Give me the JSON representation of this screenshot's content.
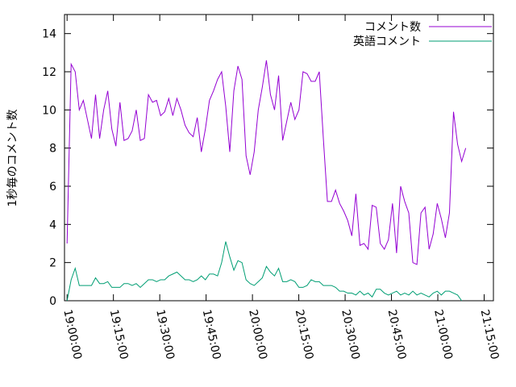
{
  "chart_data": {
    "type": "line",
    "ylabel": "1秒毎のコメント数",
    "x": [
      68400,
      68479,
      68558,
      68637,
      68716,
      68795,
      68874,
      68953,
      69032,
      69111,
      69190,
      69269,
      69348,
      69427,
      69506,
      69585,
      69664,
      69743,
      69822,
      69901,
      69980,
      70059,
      70138,
      70217,
      70296,
      70375,
      70454,
      70533,
      70612,
      70691,
      70770,
      70849,
      70928,
      71007,
      71086,
      71165,
      71244,
      71323,
      71402,
      71481,
      71560,
      71639,
      71718,
      71797,
      71876,
      71955,
      72034,
      72113,
      72192,
      72271,
      72350,
      72429,
      72508,
      72587,
      72666,
      72745,
      72824,
      72903,
      72982,
      73061,
      73140,
      73219,
      73298,
      73377,
      73456,
      73535,
      73614,
      73693,
      73772,
      73851,
      73930,
      74009,
      74088,
      74167,
      74246,
      74325,
      74404,
      74483,
      74562,
      74641,
      74720,
      74799,
      74878,
      74957,
      75036,
      75115,
      75194,
      75273,
      75352,
      75431,
      75510,
      75589,
      75668,
      75747,
      75826,
      75905,
      75984,
      76063,
      76142
    ],
    "series": [
      {
        "name": "コメント数",
        "color": "#9400d3",
        "values": [
          3,
          12.4,
          12,
          10,
          10.5,
          9.5,
          8.5,
          10.8,
          8.5,
          10,
          11,
          9,
          8.1,
          10.4,
          8.4,
          8.5,
          8.9,
          10,
          8.4,
          8.5,
          10.8,
          10.4,
          10.5,
          9.7,
          9.9,
          10.6,
          9.7,
          10.6,
          10,
          9.2,
          8.8,
          8.6,
          9.6,
          7.8,
          9,
          10.5,
          11,
          11.6,
          12,
          10.2,
          7.8,
          11,
          12.3,
          11.6,
          7.6,
          6.6,
          7.8,
          10,
          11.2,
          12.6,
          10.8,
          10,
          11.8,
          8.4,
          9.4,
          10.4,
          9.5,
          10,
          12,
          11.9,
          11.5,
          11.5,
          12,
          8.5,
          5.2,
          5.2,
          5.8,
          5.1,
          4.7,
          4.2,
          3.4,
          5.6,
          2.9,
          3,
          2.7,
          5,
          4.9,
          3,
          2.7,
          3.2,
          5.1,
          2.5,
          6,
          5.2,
          4.6,
          2,
          1.9,
          4.6,
          4.9,
          2.7,
          3.5,
          5.1,
          4.3,
          3.3,
          4.6,
          9.9,
          8.2,
          7.3,
          8
        ]
      },
      {
        "name": "英語コメント",
        "color": "#009e73",
        "values": [
          0,
          1.1,
          1.7,
          0.8,
          0.8,
          0.8,
          0.8,
          1.2,
          0.9,
          0.9,
          1,
          0.7,
          0.7,
          0.7,
          0.9,
          0.9,
          0.8,
          0.9,
          0.7,
          0.9,
          1.1,
          1.1,
          1,
          1.1,
          1.1,
          1.3,
          1.4,
          1.5,
          1.3,
          1.1,
          1.1,
          1,
          1.1,
          1.3,
          1.1,
          1.4,
          1.4,
          1.3,
          2,
          3.1,
          2.3,
          1.6,
          2.1,
          2,
          1.1,
          0.9,
          0.8,
          1,
          1.2,
          1.8,
          1.5,
          1.3,
          1.7,
          1,
          1,
          1.1,
          1,
          0.7,
          0.7,
          0.8,
          1.1,
          1,
          1,
          0.8,
          0.8,
          0.8,
          0.7,
          0.5,
          0.5,
          0.4,
          0.4,
          0.3,
          0.5,
          0.3,
          0.4,
          0.2,
          0.6,
          0.6,
          0.4,
          0.3,
          0.4,
          0.5,
          0.3,
          0.4,
          0.3,
          0.5,
          0.3,
          0.4,
          0.3,
          0.2,
          0.4,
          0.5,
          0.3,
          0.5,
          0.5,
          0.4,
          0.3,
          0,
          null
        ]
      }
    ],
    "xlim": [
      68350,
      76680
    ],
    "xticks": [
      {
        "value": 68400,
        "label": "19:00:00"
      },
      {
        "value": 69300,
        "label": "19:15:00"
      },
      {
        "value": 70200,
        "label": "19:30:00"
      },
      {
        "value": 71100,
        "label": "19:45:00"
      },
      {
        "value": 72000,
        "label": "20:00:00"
      },
      {
        "value": 72900,
        "label": "20:15:00"
      },
      {
        "value": 73800,
        "label": "20:30:00"
      },
      {
        "value": 74700,
        "label": "20:45:00"
      },
      {
        "value": 75600,
        "label": "21:00:00"
      },
      {
        "value": 76500,
        "label": "21:15:00"
      }
    ],
    "ylim": [
      0,
      15
    ],
    "yticks": [
      0,
      2,
      4,
      6,
      8,
      10,
      12,
      14
    ],
    "grid": false,
    "legend": "top-right"
  }
}
